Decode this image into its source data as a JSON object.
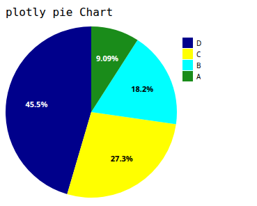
{
  "chart_data": {
    "type": "pie",
    "title": "plotly pie Chart",
    "categories": [
      "D",
      "C",
      "B",
      "A"
    ],
    "values": [
      45.5,
      27.3,
      18.2,
      9.09
    ],
    "value_labels": [
      "45.5%",
      "27.3%",
      "18.2%",
      "9.09%"
    ],
    "colors": [
      "#00008B",
      "#FFFF00",
      "#00FFFF",
      "#1a8c1a"
    ],
    "data_labels": true,
    "legend": "right"
  }
}
